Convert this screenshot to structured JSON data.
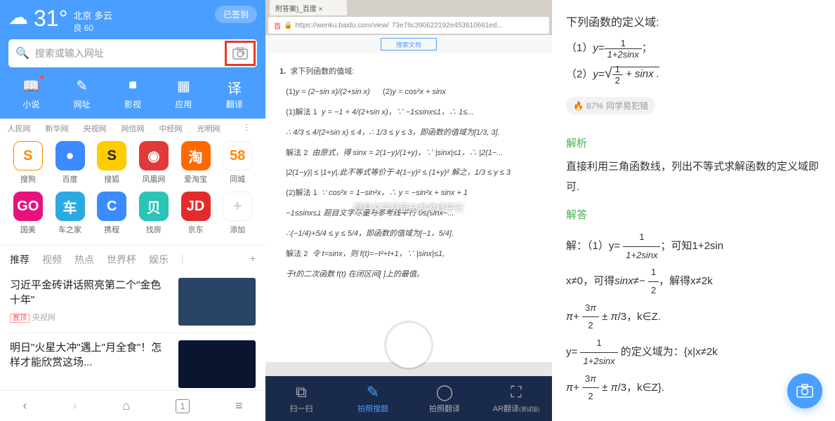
{
  "p1": {
    "temp": "31°",
    "city": "北京",
    "weather": "多云",
    "aqi_label": "良",
    "aqi_value": "60",
    "signin": "已签到",
    "search_placeholder": "搜索或输入网址",
    "nav": [
      {
        "label": "小说",
        "icon": "📖",
        "dot": true
      },
      {
        "label": "网址",
        "icon": "✎",
        "dot": false
      },
      {
        "label": "影视",
        "icon": "■",
        "dot": false
      },
      {
        "label": "应用",
        "icon": "▦",
        "dot": false
      },
      {
        "label": "翻译",
        "icon": "译",
        "dot": false
      }
    ],
    "sites": [
      "人民网",
      "新华网",
      "央视网",
      "网信网",
      "中经网",
      "光明网"
    ],
    "apps": [
      {
        "label": "搜狗",
        "bg": "#ffffff",
        "fg": "#ff8800",
        "text": "S",
        "border": "#ff8800"
      },
      {
        "label": "百度",
        "bg": "#3b8aff",
        "fg": "#ffffff",
        "text": "●"
      },
      {
        "label": "搜狐",
        "bg": "#ffcc00",
        "fg": "#222222",
        "text": "S"
      },
      {
        "label": "凤凰网",
        "bg": "#e03a3a",
        "fg": "#ffffff",
        "text": "◉"
      },
      {
        "label": "爱淘宝",
        "bg": "#ff6a00",
        "fg": "#ffffff",
        "text": "淘"
      },
      {
        "label": "同城",
        "bg": "#ffffff",
        "fg": "#ff8800",
        "text": "58",
        "border": "#eeeeee"
      },
      {
        "label": "国美",
        "bg": "#e6137e",
        "fg": "#ffffff",
        "text": "GO"
      },
      {
        "label": "车之家",
        "bg": "#2aaae2",
        "fg": "#ffffff",
        "text": "车"
      },
      {
        "label": "携程",
        "bg": "#3b8aff",
        "fg": "#ffffff",
        "text": "C"
      },
      {
        "label": "找房",
        "bg": "#2ac4b8",
        "fg": "#ffffff",
        "text": "贝"
      },
      {
        "label": "京东",
        "bg": "#e22b2b",
        "fg": "#ffffff",
        "text": "JD"
      },
      {
        "label": "添加",
        "bg": "#ffffff",
        "fg": "#cccccc",
        "text": "+",
        "border": "#eeeeee"
      }
    ],
    "tabs": [
      "推荐",
      "视频",
      "热点",
      "世界杯",
      "娱乐"
    ],
    "news": [
      {
        "title": "习近平金砖讲话照亮第二个\"金色十年\"",
        "tag": "置顶",
        "src": "央视网",
        "img_bg": "#2a4466"
      },
      {
        "title": "明日\"火星大冲\"遇上\"月全食\"！怎样才能欣赏这场...",
        "img_bg": "#0a1530"
      }
    ],
    "tab_count": "1"
  },
  "p2": {
    "browser_tab": "附答案)_百度 ×",
    "url_prefix": "https://wenku.baidu.com/view/",
    "url_id": "73e76c390622192e453610661ed...",
    "search_label": "搜索文档",
    "doc": {
      "q_label": "1.",
      "q_text": "求下列函数的值域:",
      "eq1_label": "(1)",
      "eq1": "y = (2−sin x)/(2+sin x)",
      "eq2_label": "(2)",
      "eq2": "y = cos²x + sinx",
      "m1_label": "(1)解法 1",
      "m1_text": "y = −1 + 4/(2+sin x)，∵ −1≤sinx≤1，∴ 1≤...",
      "m1_line2": "∴ 4/3 ≤ 4/(2+sin x) ≤ 4，∴ 1/3 ≤ y ≤ 3，即函数的值域为[1/3, 3].",
      "m2_label": "解法 2",
      "m2_text": "由原式，得 sinx = 2(1−y)/(1+y)，∵ |sinx|≤1，∴ |2(1−...",
      "m2_line2": "|2(1−y)| ≤ |1+y|.此不等式等价于 4(1−y)² ≤ (1+y)²  解之，1/3 ≤ y ≤ 3",
      "m3_label": "(2)解法 1",
      "m3_text": "∵ cos²x = 1−sin²x，∴ y = −sin²x + sinx + 1",
      "m3_line2": "−1≤sinx≤1   题目文字尽量与参考线平行   0≤(sinx−...",
      "m3_line3": "∴(−1/4)+5/4 ≤ y ≤ 5/4，即函数的值域为[−1，5/4].",
      "m4_label": "解法 2",
      "m4_text": "令 t=sinx，则 f(t)=−t²+t+1，∵ |sinx|≤1,",
      "m4_line2": "于t的二次函数 f(t) 在闭区间[  ]上的最值。"
    },
    "guide_text": "题目文字尽量与参考线平行",
    "bottom_tabs": [
      {
        "label": "扫一扫",
        "icon": "⧉"
      },
      {
        "label": "拍照搜题",
        "icon": "✎"
      },
      {
        "label": "拍照翻译",
        "icon": "◯"
      },
      {
        "label": "AR翻译",
        "icon": "⛶"
      }
    ],
    "beta_tag": "(测试版)"
  },
  "p3": {
    "title": "下列函数的定义域:",
    "q1_prefix": "（1）",
    "q1_var": "y=",
    "q1_num": "1",
    "q1_den": "1+2sinx",
    "q1_suffix": "；",
    "q2_prefix": "（2）",
    "q2_var": "y=",
    "q2_sqrt": "√",
    "q2_num": "1",
    "q2_den": "2",
    "q2_rest": " + sinx .",
    "badge_pct": "87%",
    "badge_text": "同学易犯错",
    "sec1": "解析",
    "sec1_body": "直接利用三角函数线，列出不等式求解函数的定义域即可.",
    "sec2": "解答",
    "ans_lines": [
      "解：（1）y= 1/(1+2sinx)；可知1+2sin",
      "x≠0，可得sinx≠− 1/2，解得x≠2k",
      "π+ 3π/2 ± π/3，k∈Z.",
      "y= 1/(1+2sinx) 的定义域为：{x|x≠2k",
      "π+ 3π/2 ± π/3，k∈Z}."
    ]
  },
  "colors": {
    "primary": "#4a9eff",
    "green": "#4caf50",
    "red_box": "#e73828"
  }
}
